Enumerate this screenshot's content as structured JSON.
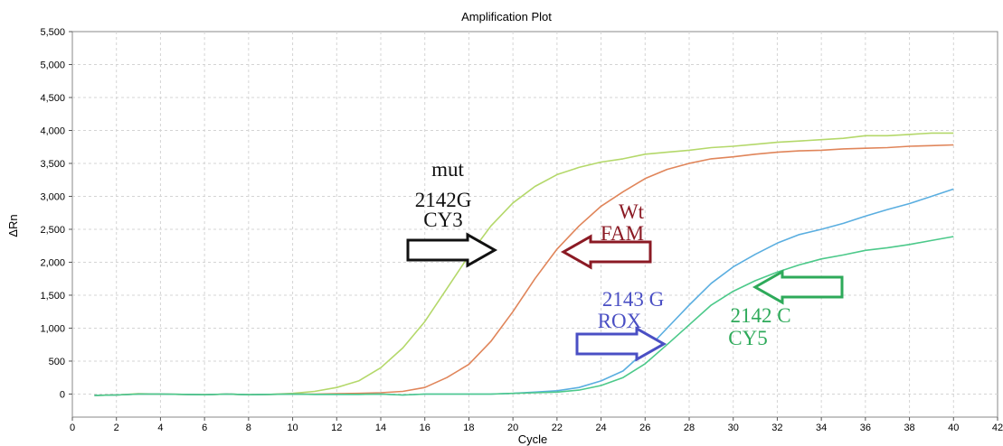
{
  "chart_data": {
    "type": "line",
    "title": "Amplification Plot",
    "xlabel": "Cycle",
    "ylabel": "ΔRn",
    "xlim": [
      0,
      42
    ],
    "ylim": [
      -350,
      5500
    ],
    "xticks": [
      "0",
      "2",
      "4",
      "6",
      "8",
      "10",
      "12",
      "14",
      "16",
      "18",
      "20",
      "22",
      "24",
      "26",
      "28",
      "30",
      "32",
      "34",
      "36",
      "38",
      "40",
      "42"
    ],
    "yticks": [
      "0",
      "500",
      "1,000",
      "1,500",
      "2,000",
      "2,500",
      "3,000",
      "3,500",
      "4,000",
      "4,500",
      "5,000",
      "5,500"
    ],
    "grid": "dashed",
    "x": [
      1,
      2,
      3,
      4,
      5,
      6,
      7,
      8,
      9,
      10,
      11,
      12,
      13,
      14,
      15,
      16,
      17,
      18,
      19,
      20,
      21,
      22,
      23,
      24,
      25,
      26,
      27,
      28,
      29,
      30,
      31,
      32,
      33,
      34,
      35,
      36,
      37,
      38,
      39,
      40
    ],
    "series": [
      {
        "color": "#b4d86a",
        "values": [
          -20,
          -15,
          5,
          0,
          -5,
          -10,
          0,
          -10,
          -5,
          10,
          40,
          100,
          200,
          400,
          700,
          1100,
          1600,
          2100,
          2550,
          2900,
          3150,
          3330,
          3440,
          3520,
          3570,
          3640,
          3670,
          3700,
          3740,
          3760,
          3790,
          3820,
          3840,
          3860,
          3880,
          3920,
          3920,
          3940,
          3960,
          3960
        ]
      },
      {
        "color": "#e0855a",
        "values": [
          -20,
          -15,
          0,
          0,
          -5,
          -10,
          0,
          -10,
          -5,
          0,
          0,
          5,
          10,
          20,
          40,
          100,
          250,
          450,
          800,
          1250,
          1750,
          2200,
          2550,
          2850,
          3070,
          3270,
          3410,
          3500,
          3570,
          3600,
          3640,
          3670,
          3690,
          3700,
          3720,
          3730,
          3740,
          3760,
          3770,
          3780
        ]
      },
      {
        "color": "#5aaee0",
        "values": [
          -20,
          -15,
          0,
          0,
          -5,
          -10,
          0,
          -10,
          -5,
          0,
          -5,
          -5,
          -5,
          0,
          -15,
          0,
          0,
          0,
          0,
          10,
          30,
          50,
          100,
          200,
          350,
          650,
          1000,
          1350,
          1680,
          1930,
          2120,
          2290,
          2420,
          2500,
          2590,
          2700,
          2800,
          2890,
          3000,
          3110
        ]
      },
      {
        "color": "#4cc98a",
        "values": [
          -20,
          -15,
          0,
          0,
          -5,
          -10,
          0,
          -10,
          -5,
          0,
          -5,
          -5,
          -5,
          0,
          -15,
          0,
          0,
          0,
          0,
          10,
          20,
          30,
          60,
          130,
          250,
          460,
          750,
          1050,
          1350,
          1560,
          1720,
          1850,
          1960,
          2050,
          2110,
          2180,
          2220,
          2270,
          2330,
          2390
        ]
      }
    ],
    "annotations": [
      {
        "lines": [
          "mut",
          "2142G",
          "CY3"
        ],
        "color": "#111111",
        "arrow": "right",
        "arrow_color": "#111111"
      },
      {
        "lines": [
          "Wt",
          "FAM"
        ],
        "color": "#8b1a24",
        "arrow": "left",
        "arrow_color": "#8b1a24"
      },
      {
        "lines": [
          "2143 G",
          "ROX"
        ],
        "color": "#4a4fc4",
        "arrow": "right",
        "arrow_color": "#4a4fc4"
      },
      {
        "lines": [
          "2142 C",
          "CY5"
        ],
        "color": "#2eaa5a",
        "arrow": "left",
        "arrow_color": "#2eaa5a"
      }
    ]
  }
}
